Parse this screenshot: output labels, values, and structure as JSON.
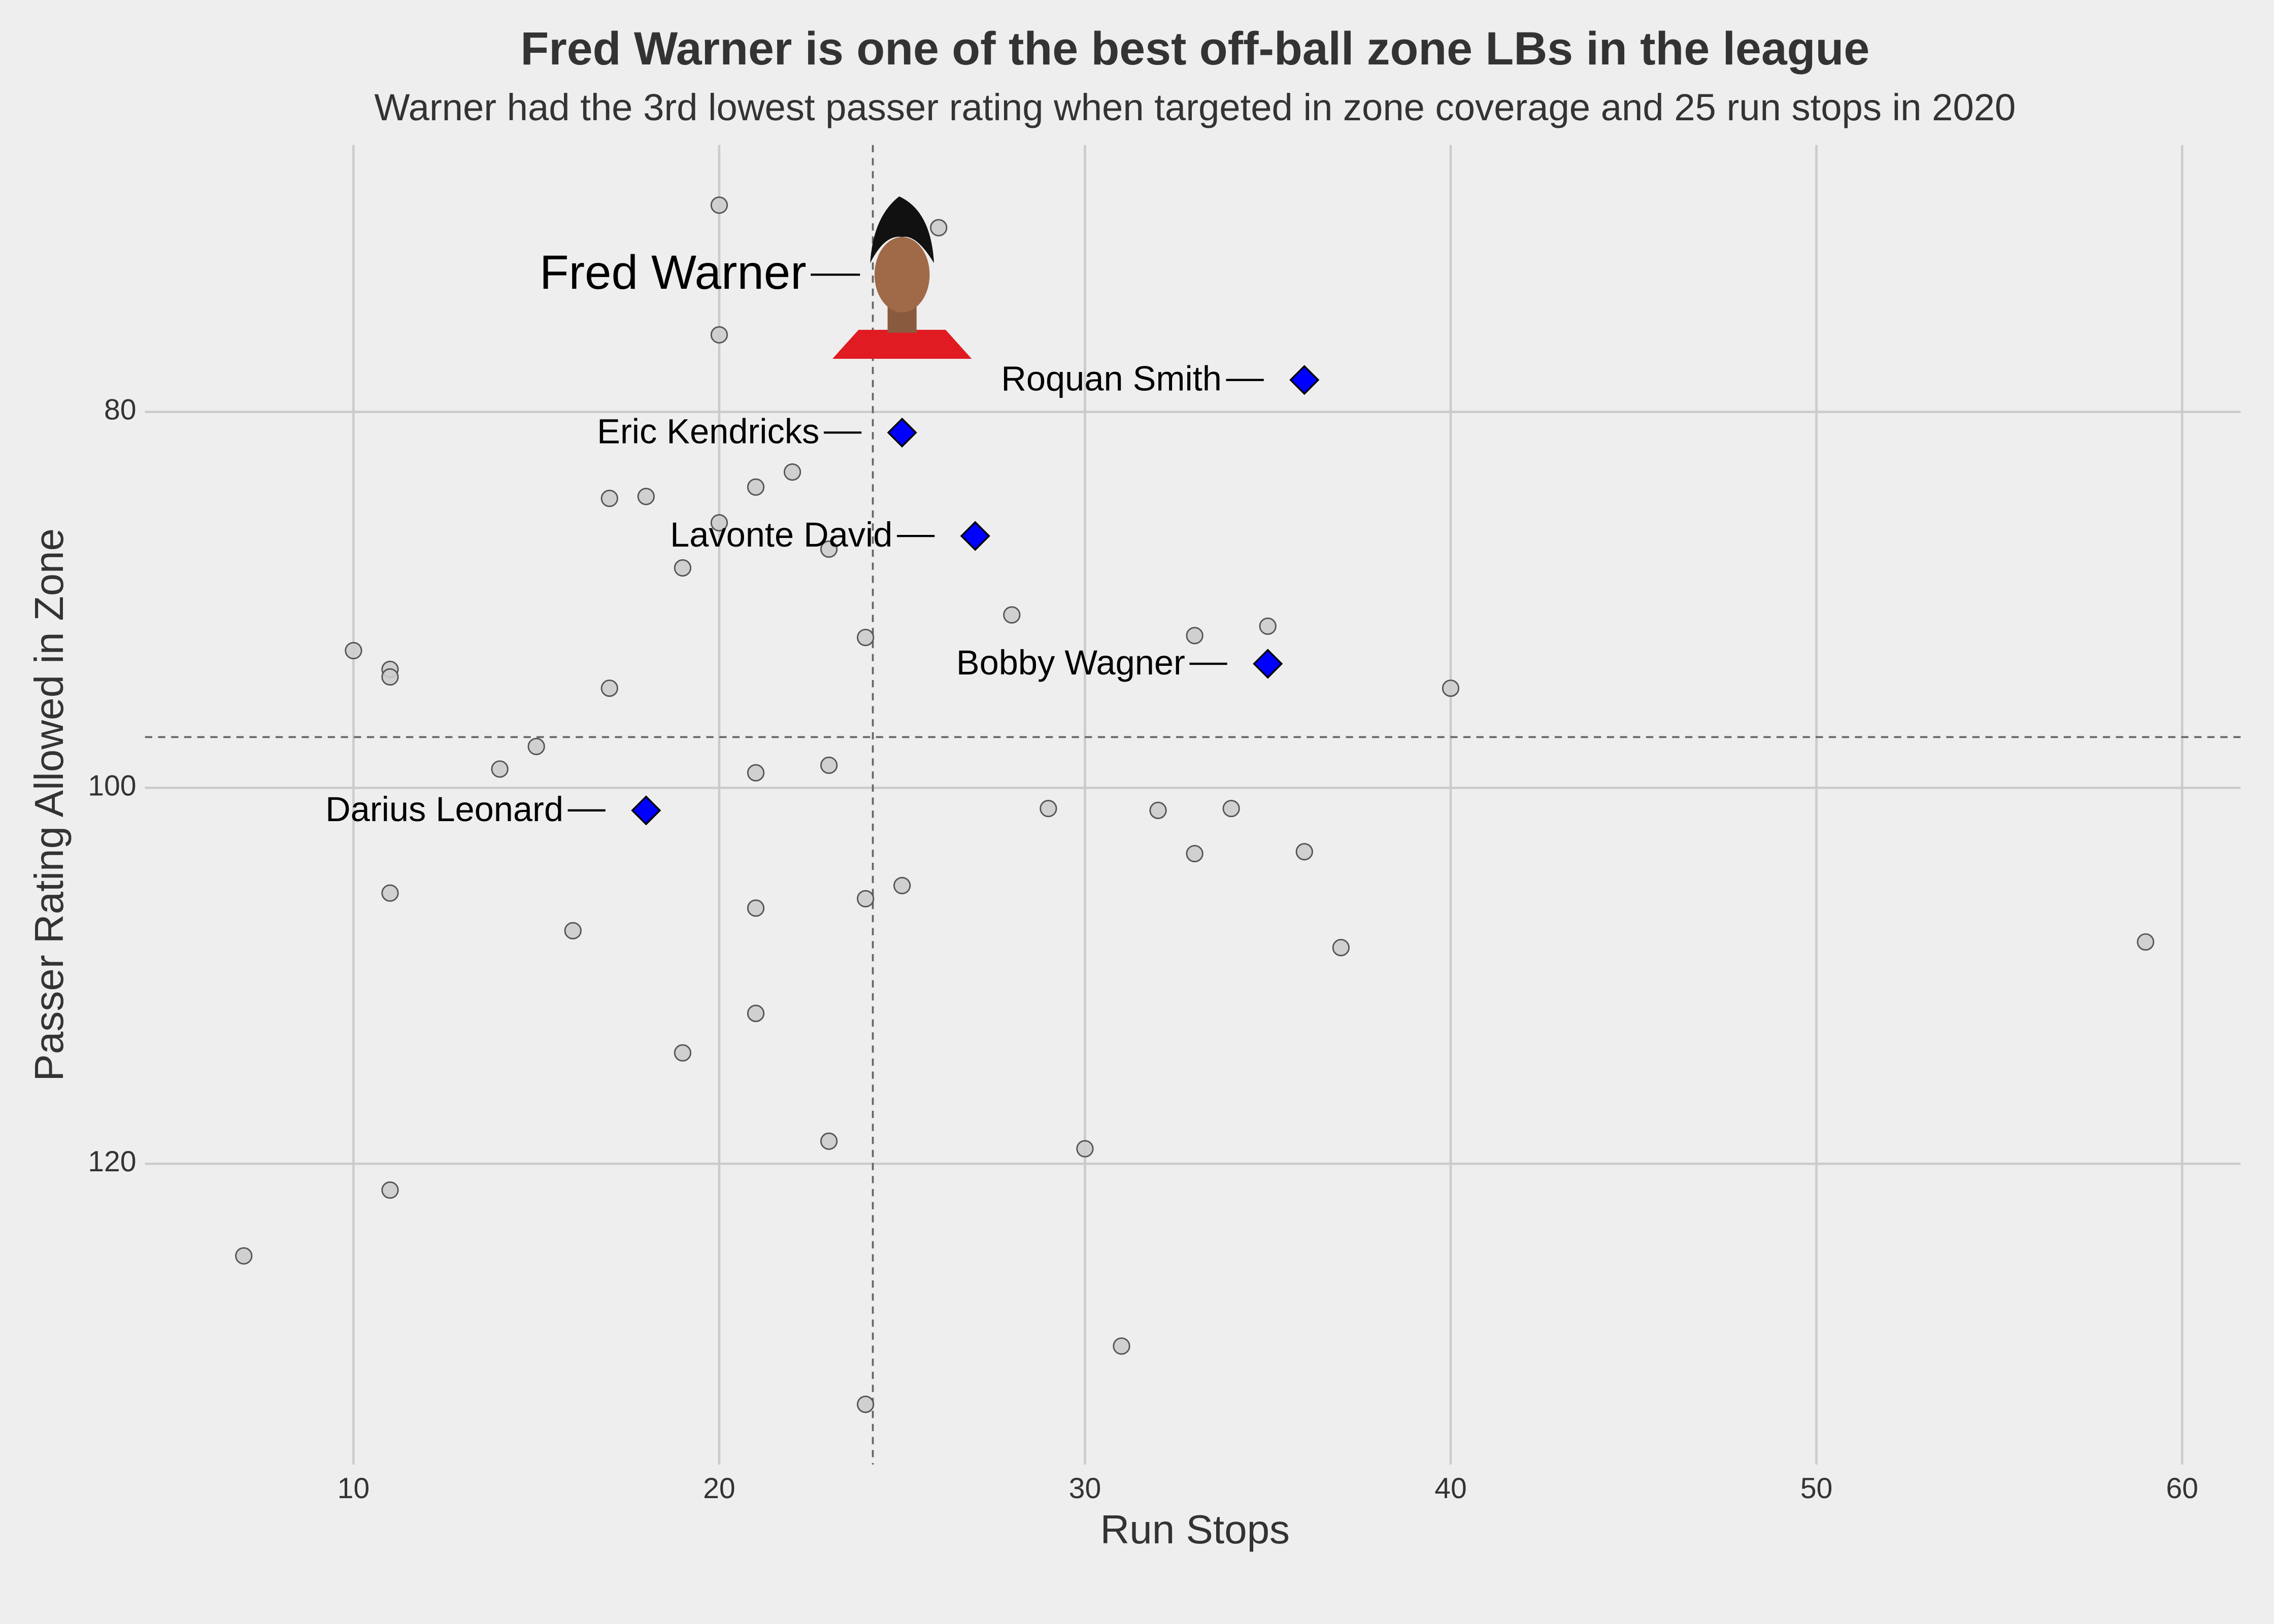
{
  "chart_data": {
    "type": "scatter",
    "title": "Fred Warner is one of the best off-ball zone LBs in the league",
    "subtitle": "Warner had the 3rd lowest passer rating when targeted in zone coverage and 25 run stops in 2020",
    "x_label": "Run Stops",
    "y_label": "Passer Rating Allowed in Zone",
    "xlim": [
      4.3,
      61.6
    ],
    "ylim": [
      136,
      65.8
    ],
    "xticks": [
      10,
      20,
      30,
      40,
      50,
      60
    ],
    "yticks": [
      80,
      100,
      120
    ],
    "grid": true,
    "reference_lines": {
      "x": 24.2,
      "y": 97.3
    },
    "points": {
      "color": "#cccccc",
      "x": [
        20,
        26,
        20,
        22,
        21,
        17,
        18,
        20,
        23,
        19,
        28,
        24,
        33,
        35,
        10,
        11,
        11,
        17,
        40,
        15,
        14,
        23,
        21,
        29,
        32,
        34,
        33,
        36,
        11,
        25,
        24,
        21,
        16,
        37,
        59,
        21,
        19,
        23,
        30,
        11,
        7,
        31,
        24
      ],
      "y": [
        69.0,
        70.2,
        75.9,
        83.2,
        84.0,
        84.6,
        84.5,
        85.9,
        87.3,
        88.3,
        90.8,
        92.0,
        91.9,
        91.4,
        92.7,
        93.7,
        94.1,
        94.7,
        94.7,
        97.8,
        99.0,
        98.8,
        99.2,
        101.1,
        101.2,
        101.1,
        103.5,
        103.4,
        105.6,
        105.2,
        105.9,
        106.4,
        107.6,
        108.5,
        108.2,
        112.0,
        114.1,
        118.8,
        119.2,
        121.4,
        124.9,
        129.7,
        132.8
      ]
    },
    "highlight_color": "#0000ff",
    "featured": {
      "label": "Fred Warner",
      "x": 25,
      "y": 72.7
    },
    "highlights": [
      {
        "label": "Roquan Smith",
        "x": 36,
        "y": 78.3
      },
      {
        "label": "Eric Kendricks",
        "x": 25,
        "y": 81.1
      },
      {
        "label": "Lavonte David",
        "x": 27,
        "y": 86.6
      },
      {
        "label": "Bobby Wagner",
        "x": 35,
        "y": 93.4
      },
      {
        "label": "Darius Leonard",
        "x": 18,
        "y": 101.2
      }
    ]
  }
}
